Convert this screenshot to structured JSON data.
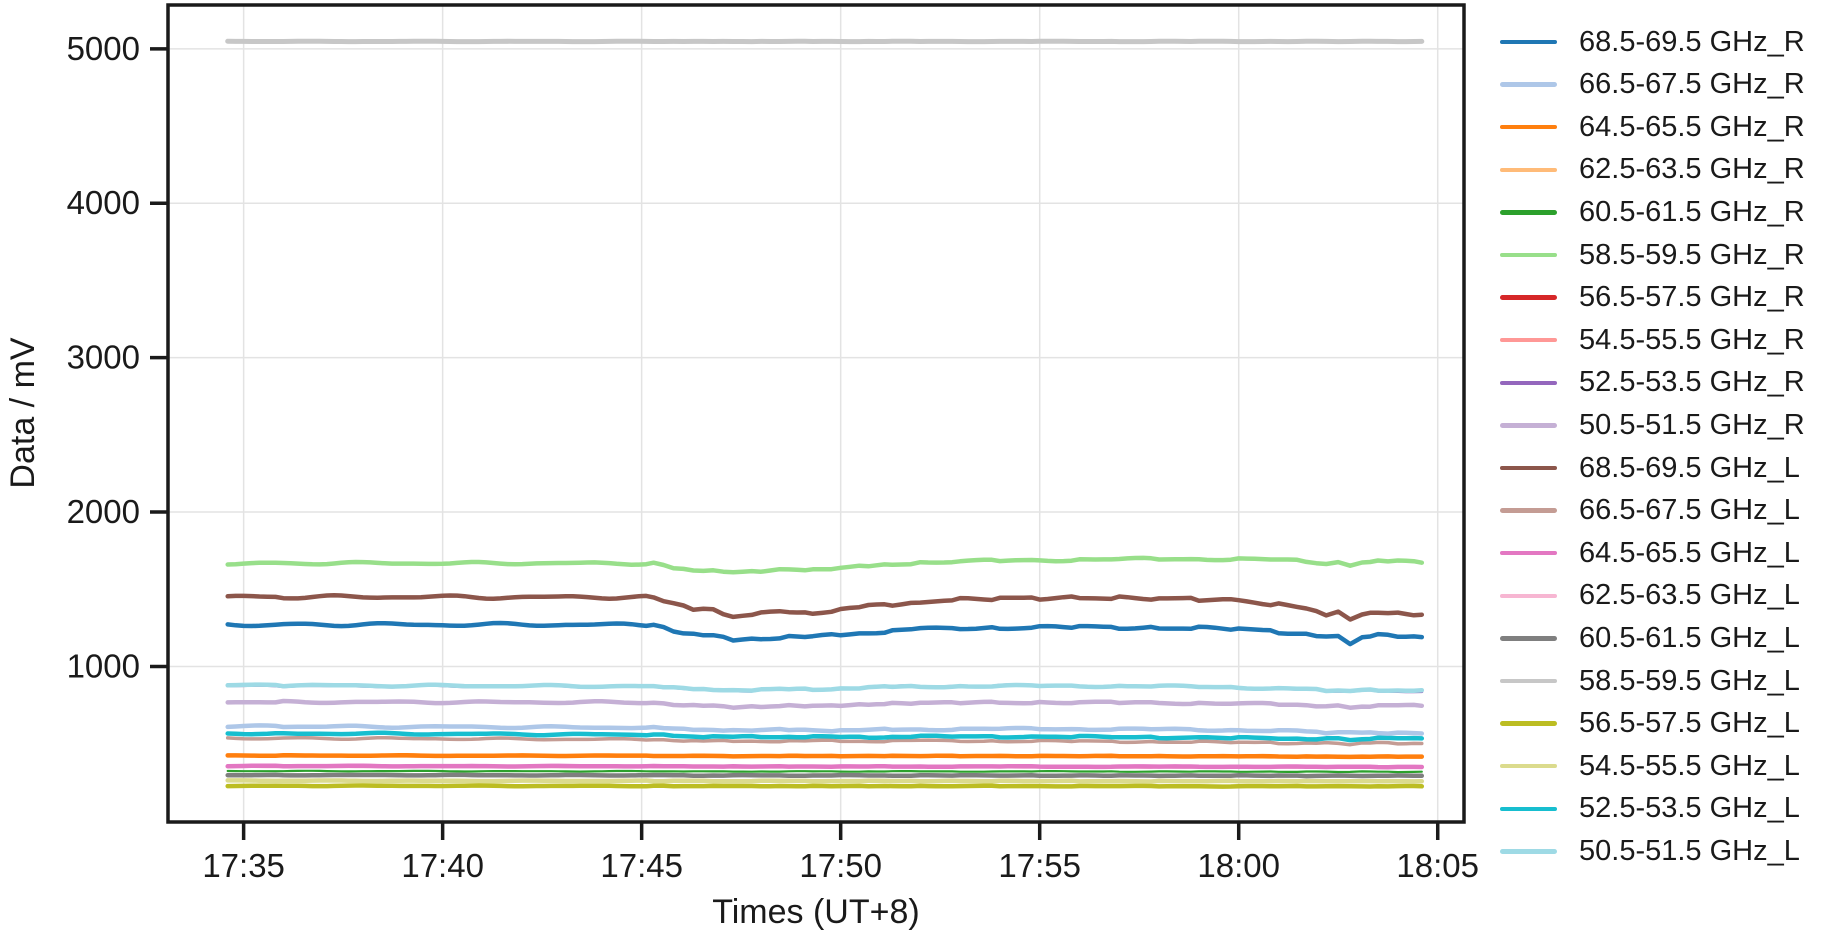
{
  "figure": {
    "background": "#ffffff",
    "text_color": "#1a1a1a",
    "grid_color": "#e3e3e3",
    "spine_color": "#1a1a1a"
  },
  "chart_data": {
    "type": "line",
    "title": "",
    "xlabel": "Times (UT+8)",
    "ylabel": "Data / mV",
    "grid": true,
    "legend_position": "right of plot, vertical list",
    "x_tick_labels": [
      "17:35",
      "17:40",
      "17:45",
      "17:50",
      "17:55",
      "18:00",
      "18:05"
    ],
    "x_tick_minutes": [
      5,
      10,
      15,
      20,
      25,
      30,
      35
    ],
    "y_ticks": [
      1000,
      2000,
      3000,
      4000,
      5000
    ],
    "xlim_minutes": [
      3.1,
      35.66
    ],
    "ylim": [
      -7.5,
      5284
    ],
    "x_axis_note": "x values are minutes after 17:30 local (UT+8); data runs ~17:34.6 to ~18:04.6",
    "x_minutes": [
      4.6,
      6,
      8,
      10,
      12,
      14,
      15.3,
      15.8,
      16.3,
      16.8,
      17.3,
      18,
      18.7,
      19.3,
      20,
      20.7,
      21.3,
      22,
      23,
      24,
      25,
      26,
      27,
      28,
      29,
      30,
      31,
      31.7,
      32.2,
      32.5,
      32.8,
      33.1,
      33.5,
      34,
      34.6
    ],
    "draw_order": [
      15,
      3,
      6,
      7,
      13,
      2,
      12,
      4,
      14,
      17,
      16,
      11,
      18,
      1,
      9,
      8,
      19,
      5,
      10,
      0
    ],
    "series": [
      {
        "name": "68.5-69.5 GHz_R",
        "color": "#1f77b4",
        "width": 4.5,
        "noise": 1.3,
        "values": [
          1272,
          1271,
          1272,
          1270,
          1271,
          1270,
          1269,
          1232,
          1213,
          1196,
          1168,
          1184,
          1196,
          1188,
          1204,
          1222,
          1230,
          1240,
          1248,
          1251,
          1253,
          1255,
          1253,
          1250,
          1247,
          1243,
          1226,
          1212,
          1183,
          1199,
          1155,
          1185,
          1200,
          1197,
          1190
        ]
      },
      {
        "name": "66.5-67.5 GHz_R",
        "color": "#aec7e8",
        "width": 4.5,
        "noise": 0.8,
        "values": [
          612,
          611,
          610,
          609,
          607,
          605,
          604,
          597,
          592,
          589,
          585,
          588,
          590,
          588,
          585,
          589,
          591,
          593,
          594,
          595,
          596,
          595,
          594,
          592,
          590,
          588,
          583,
          578,
          572,
          575,
          568,
          572,
          574,
          570,
          566
        ]
      },
      {
        "name": "64.5-65.5 GHz_R",
        "color": "#ff7f0e",
        "width": 4.5,
        "noise": 0.25,
        "values": [
          423,
          423,
          423,
          422,
          422,
          422,
          422,
          421,
          420,
          420,
          419,
          420,
          420,
          420,
          420,
          420,
          420,
          420,
          420,
          420,
          420,
          419,
          419,
          419,
          418,
          418,
          417,
          417,
          416,
          416,
          415,
          416,
          416,
          416,
          416
        ]
      },
      {
        "name": "62.5-63.5 GHz_R",
        "color": "#ffbb78",
        "width": 3,
        "noise": 0.25,
        "values": [
          420,
          420,
          420,
          419,
          419,
          419,
          419,
          418,
          417,
          417,
          416,
          417,
          417,
          417,
          417,
          417,
          417,
          417,
          417,
          417,
          417,
          416,
          416,
          416,
          415,
          415,
          414,
          414,
          413,
          413,
          412,
          413,
          413,
          413,
          413
        ]
      },
      {
        "name": "60.5-61.5 GHz_R",
        "color": "#2ca02c",
        "width": 2.2,
        "noise": 0.25,
        "values": [
          322,
          322,
          322,
          322,
          321,
          321,
          321,
          321,
          320,
          320,
          320,
          320,
          320,
          320,
          320,
          320,
          320,
          320,
          320,
          320,
          320,
          320,
          320,
          319,
          319,
          319,
          319,
          318,
          318,
          318,
          318,
          318,
          318,
          318,
          318
        ]
      },
      {
        "name": "58.5-59.5 GHz_R",
        "color": "#98df8a",
        "width": 4.5,
        "noise": 1.0,
        "values": [
          1668,
          1668,
          1669,
          1668,
          1669,
          1668,
          1667,
          1640,
          1625,
          1618,
          1608,
          1618,
          1630,
          1625,
          1638,
          1652,
          1660,
          1672,
          1680,
          1685,
          1688,
          1692,
          1694,
          1695,
          1696,
          1697,
          1690,
          1680,
          1666,
          1672,
          1650,
          1678,
          1688,
          1680,
          1672
        ]
      },
      {
        "name": "56.5-57.5 GHz_R",
        "color": "#d62728",
        "width": 3,
        "noise": 0.25,
        "values": [
          354,
          354,
          354,
          353,
          353,
          353,
          353,
          352,
          352,
          351,
          351,
          351,
          351,
          351,
          351,
          351,
          351,
          351,
          351,
          351,
          351,
          350,
          350,
          350,
          350,
          350,
          349,
          349,
          349,
          349,
          348,
          349,
          349,
          349,
          348
        ]
      },
      {
        "name": "54.5-55.5 GHz_R",
        "color": "#ff9896",
        "width": 3,
        "noise": 0.25,
        "values": [
          298,
          298,
          298,
          298,
          297,
          297,
          297,
          297,
          296,
          296,
          296,
          296,
          296,
          296,
          296,
          296,
          296,
          296,
          296,
          296,
          296,
          295,
          295,
          295,
          295,
          295,
          295,
          294,
          294,
          294,
          294,
          294,
          294,
          294,
          294
        ]
      },
      {
        "name": "52.5-53.5 GHz_R",
        "color": "#9467bd",
        "width": 3.2,
        "noise": 0.8,
        "values": [
          874,
          873,
          873,
          872,
          872,
          871,
          870,
          860,
          852,
          848,
          842,
          848,
          852,
          848,
          855,
          866,
          870,
          872,
          874,
          875,
          875,
          874,
          873,
          870,
          867,
          863,
          856,
          850,
          841,
          845,
          835,
          841,
          845,
          842,
          838
        ]
      },
      {
        "name": "50.5-51.5 GHz_R",
        "color": "#c5b0d5",
        "width": 4.5,
        "noise": 0.8,
        "values": [
          770,
          770,
          769,
          769,
          768,
          768,
          766,
          756,
          748,
          742,
          736,
          742,
          746,
          742,
          748,
          755,
          760,
          763,
          765,
          766,
          767,
          767,
          766,
          764,
          762,
          760,
          754,
          750,
          741,
          746,
          735,
          742,
          746,
          746,
          745
        ]
      },
      {
        "name": "68.5-69.5 GHz_L",
        "color": "#8c564b",
        "width": 4.5,
        "noise": 1.3,
        "values": [
          1450,
          1449,
          1451,
          1450,
          1448,
          1450,
          1448,
          1400,
          1368,
          1380,
          1318,
          1340,
          1356,
          1350,
          1365,
          1390,
          1402,
          1420,
          1433,
          1440,
          1443,
          1445,
          1443,
          1440,
          1435,
          1428,
          1400,
          1378,
          1338,
          1352,
          1298,
          1340,
          1352,
          1345,
          1335
        ]
      },
      {
        "name": "66.5-67.5 GHz_L",
        "color": "#c49c94",
        "width": 3.5,
        "noise": 0.7,
        "values": [
          536,
          535,
          534,
          532,
          530,
          528,
          526,
          522,
          519,
          517,
          515,
          517,
          518,
          517,
          516,
          517,
          518,
          518,
          518,
          517,
          516,
          515,
          514,
          512,
          510,
          508,
          506,
          504,
          501,
          503,
          499,
          502,
          503,
          502,
          501
        ]
      },
      {
        "name": "64.5-65.5 GHz_L",
        "color": "#e377c2",
        "width": 4.5,
        "noise": 0.25,
        "values": [
          355,
          355,
          355,
          354,
          354,
          354,
          354,
          353,
          353,
          352,
          352,
          352,
          352,
          352,
          352,
          352,
          352,
          352,
          352,
          352,
          352,
          351,
          351,
          351,
          351,
          351,
          350,
          350,
          350,
          350,
          349,
          350,
          350,
          349,
          349
        ]
      },
      {
        "name": "62.5-63.5 GHz_L",
        "color": "#f7b6d2",
        "width": 3,
        "noise": 0.25,
        "values": [
          352,
          352,
          352,
          351,
          351,
          351,
          351,
          350,
          350,
          349,
          349,
          349,
          349,
          349,
          349,
          349,
          349,
          349,
          349,
          349,
          349,
          348,
          348,
          348,
          348,
          348,
          347,
          347,
          347,
          347,
          346,
          347,
          347,
          346,
          346
        ]
      },
      {
        "name": "60.5-61.5 GHz_L",
        "color": "#7f7f7f",
        "width": 4.5,
        "noise": 0.25,
        "values": [
          296,
          296,
          296,
          296,
          295,
          295,
          295,
          295,
          294,
          294,
          294,
          294,
          294,
          294,
          294,
          294,
          294,
          294,
          294,
          294,
          294,
          293,
          293,
          293,
          293,
          293,
          293,
          292,
          292,
          292,
          292,
          292,
          292,
          292,
          292
        ]
      },
      {
        "name": "58.5-59.5 GHz_L",
        "color": "#c7c7c7",
        "width": 5,
        "noise": 0.15,
        "values": [
          5048,
          5048,
          5048,
          5048,
          5048,
          5048,
          5048,
          5048,
          5048,
          5048,
          5048,
          5048,
          5048,
          5048,
          5048,
          5048,
          5048,
          5048,
          5048,
          5048,
          5048,
          5048,
          5048,
          5048,
          5048,
          5048,
          5048,
          5048,
          5048,
          5048,
          5048,
          5048,
          5048,
          5048,
          5048
        ]
      },
      {
        "name": "56.5-57.5 GHz_L",
        "color": "#bcbd22",
        "width": 4.5,
        "noise": 0.25,
        "values": [
          227,
          227,
          227,
          227,
          226,
          226,
          226,
          226,
          226,
          225,
          225,
          225,
          225,
          225,
          225,
          225,
          225,
          225,
          225,
          225,
          225,
          225,
          225,
          224,
          224,
          224,
          224,
          224,
          224,
          224,
          224,
          224,
          224,
          224,
          224
        ]
      },
      {
        "name": "54.5-55.5 GHz_L",
        "color": "#dbdb8d",
        "width": 4.5,
        "noise": 0.25,
        "values": [
          260,
          260,
          260,
          259,
          259,
          259,
          259,
          258,
          258,
          258,
          258,
          258,
          258,
          258,
          258,
          258,
          258,
          258,
          258,
          258,
          258,
          257,
          257,
          257,
          257,
          257,
          257,
          257,
          257,
          257,
          256,
          257,
          257,
          257,
          257
        ]
      },
      {
        "name": "52.5-53.5 GHz_L",
        "color": "#17becf",
        "width": 4.5,
        "noise": 0.7,
        "values": [
          567,
          566,
          565,
          563,
          561,
          559,
          557,
          552,
          548,
          545,
          542,
          545,
          546,
          544,
          541,
          543,
          545,
          546,
          546,
          546,
          545,
          544,
          543,
          541,
          539,
          537,
          535,
          533,
          530,
          532,
          528,
          531,
          533,
          534,
          534
        ]
      },
      {
        "name": "50.5-51.5 GHz_L",
        "color": "#9edae5",
        "width": 4.5,
        "noise": 0.8,
        "values": [
          878,
          877,
          876,
          875,
          874,
          873,
          871,
          862,
          855,
          850,
          845,
          850,
          854,
          850,
          857,
          864,
          868,
          870,
          872,
          873,
          874,
          874,
          873,
          871,
          868,
          865,
          858,
          852,
          844,
          848,
          837,
          844,
          848,
          847,
          846
        ]
      }
    ]
  }
}
